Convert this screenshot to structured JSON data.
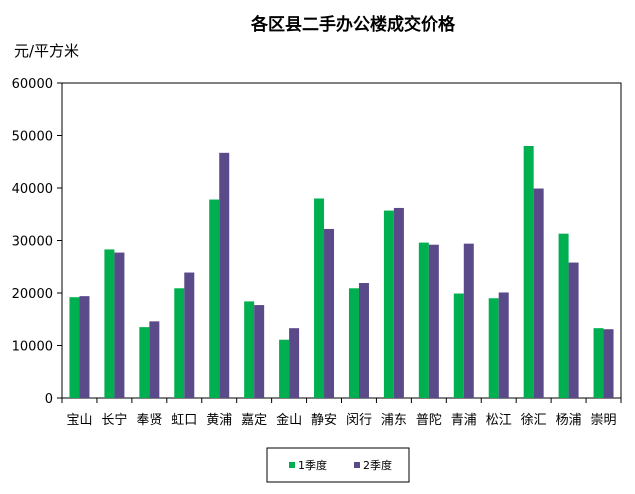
{
  "chart_data": {
    "type": "bar",
    "title": "各区县二手办公楼成交价格",
    "ylabel": "元/平方米",
    "xlabel": "",
    "ylim": [
      0,
      60000
    ],
    "ytick_step": 10000,
    "yticks": [
      "0",
      "10000",
      "20000",
      "30000",
      "40000",
      "50000",
      "60000"
    ],
    "categories": [
      "宝山",
      "长宁",
      "奉贤",
      "虹口",
      "黄浦",
      "嘉定",
      "金山",
      "静安",
      "闵行",
      "浦东",
      "普陀",
      "青浦",
      "松江",
      "徐汇",
      "杨浦",
      "崇明"
    ],
    "series": [
      {
        "name": "1季度",
        "color": "#00b050",
        "values": [
          19200,
          28300,
          13500,
          20900,
          37800,
          18400,
          11100,
          38000,
          20900,
          35700,
          29600,
          19900,
          19000,
          48000,
          31300,
          13300
        ]
      },
      {
        "name": "2季度",
        "color": "#5b4a8a",
        "values": [
          19400,
          27700,
          14600,
          23900,
          46700,
          17700,
          13300,
          32200,
          21900,
          36200,
          29200,
          29400,
          20100,
          39900,
          25800,
          13100
        ]
      }
    ],
    "grid": false,
    "legend_position": "bottom-center"
  }
}
